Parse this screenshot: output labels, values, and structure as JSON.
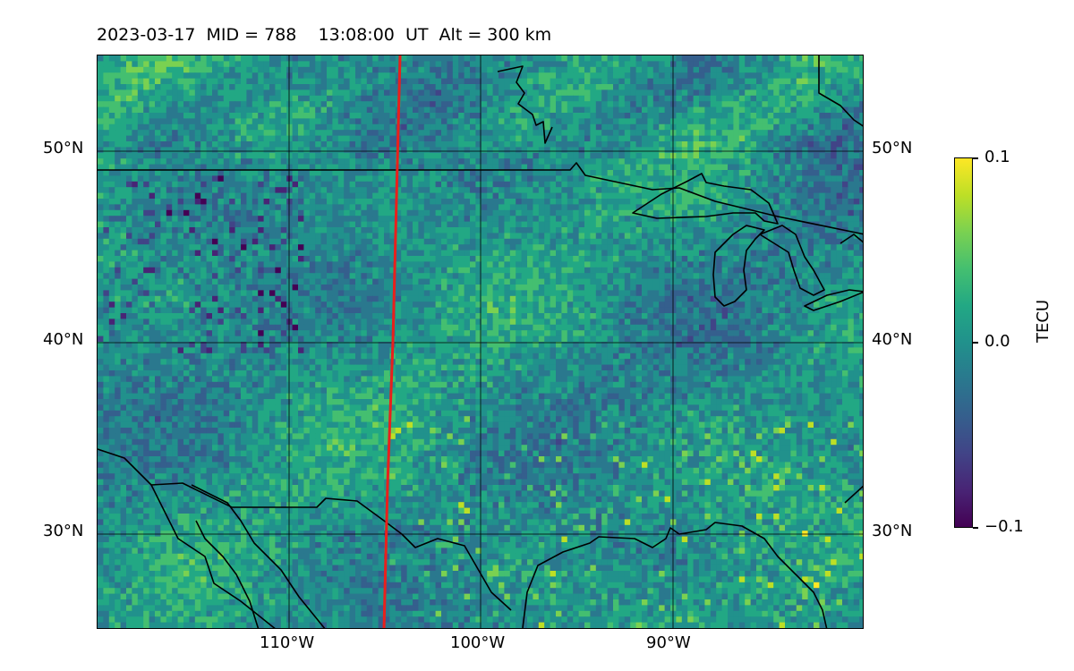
{
  "plot": {
    "title": "2023-03-17  MID = 788    13:08:00  UT  Alt = 300 km",
    "lat_labels": [
      "50°N",
      "40°N",
      "30°N"
    ],
    "lon_labels": [
      "110°W",
      "100°W",
      "90°W"
    ],
    "lat_values": [
      50,
      40,
      30
    ],
    "lon_values": [
      -110,
      -100,
      -90
    ],
    "extent": {
      "lon_min": -120,
      "lon_max": -80,
      "lat_min": 25,
      "lat_max": 55
    },
    "colormap": "viridis",
    "colors": {
      "track": "#e8201c",
      "coastline": "#000000"
    }
  },
  "colorbar": {
    "label": "TECU",
    "tick_labels": [
      "0.1",
      "0.0",
      "−0.1"
    ],
    "tick_values": [
      0.1,
      0.0,
      -0.1
    ]
  }
}
